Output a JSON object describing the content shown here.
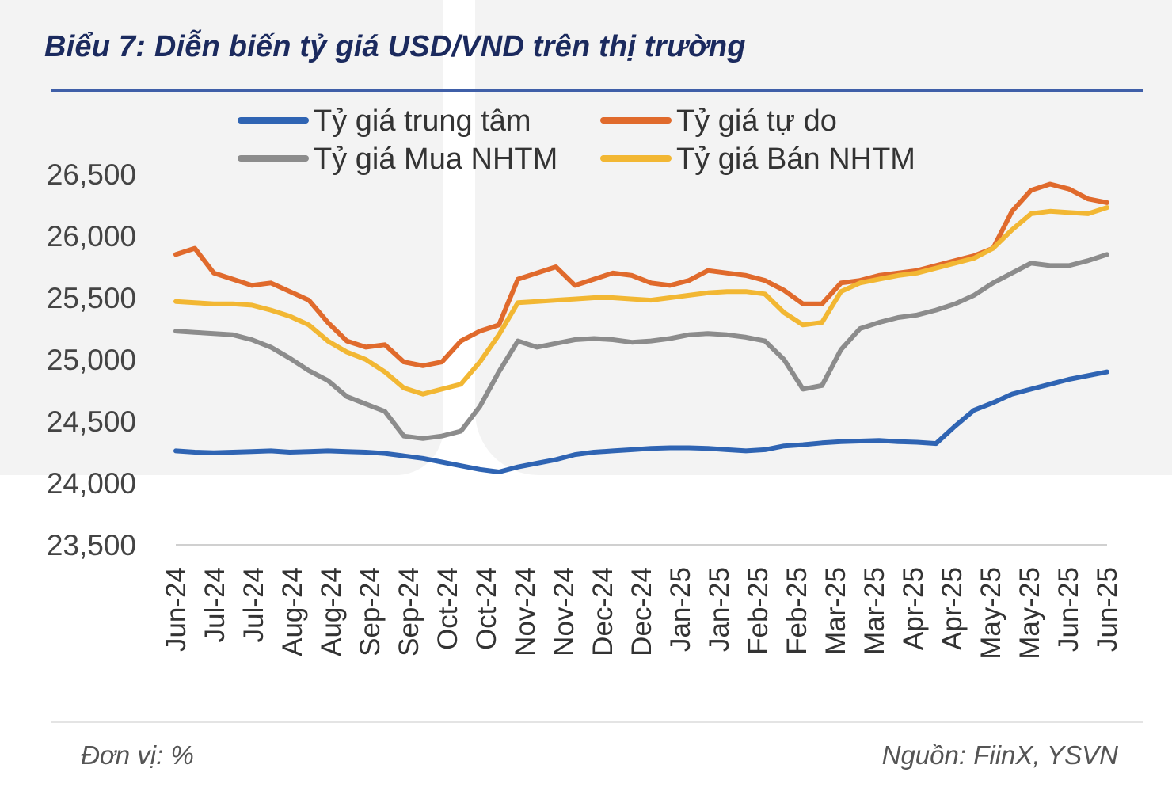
{
  "header": {
    "title": "Biểu 7: Diễn biến tỷ giá USD/VND trên thị trường"
  },
  "footer": {
    "unit": "Đơn vị: %",
    "source": "Nguồn: FiinX, YSVN"
  },
  "colors": {
    "central": "#2f64b3",
    "free": "#e06a2c",
    "buy": "#8c8c8c",
    "sell": "#f2b733",
    "title": "#1b2a5e",
    "rule": "#3f5fa8"
  },
  "chart_data": {
    "type": "line",
    "ylim": [
      23500,
      26500
    ],
    "yticks": [
      26500,
      26000,
      25500,
      25000,
      24500,
      24000,
      23500
    ],
    "ytick_labels": [
      "26,500",
      "26,000",
      "25,500",
      "25,000",
      "24,500",
      "24,000",
      "23,500"
    ],
    "xtick_labels": [
      "Jun-24",
      "Jul-24",
      "Jul-24",
      "Aug-24",
      "Aug-24",
      "Sep-24",
      "Sep-24",
      "Oct-24",
      "Oct-24",
      "Nov-24",
      "Nov-24",
      "Dec-24",
      "Dec-24",
      "Jan-25",
      "Jan-25",
      "Feb-25",
      "Feb-25",
      "Mar-25",
      "Mar-25",
      "Apr-25",
      "Apr-25",
      "May-25",
      "May-25",
      "Jun-25",
      "Jun-25"
    ],
    "legend_position": "top",
    "grid": false,
    "x_points": 50,
    "series": [
      {
        "name": "Tỷ giá trung tâm",
        "color": "#2f64b3",
        "values": [
          24260,
          24250,
          24245,
          24250,
          24255,
          24260,
          24250,
          24255,
          24260,
          24255,
          24250,
          24240,
          24220,
          24200,
          24170,
          24140,
          24110,
          24090,
          24130,
          24160,
          24190,
          24230,
          24250,
          24260,
          24270,
          24280,
          24285,
          24285,
          24280,
          24270,
          24260,
          24270,
          24300,
          24310,
          24325,
          24335,
          24340,
          24345,
          24335,
          24330,
          24320,
          24460,
          24590,
          24650,
          24720,
          24760,
          24800,
          24840,
          24870,
          24900
        ]
      },
      {
        "name": "Tỷ giá tự do",
        "color": "#e06a2c",
        "values": [
          25850,
          25900,
          25700,
          25650,
          25600,
          25620,
          25550,
          25480,
          25300,
          25150,
          25100,
          25120,
          24980,
          24950,
          24980,
          25150,
          25230,
          25280,
          25650,
          25700,
          25750,
          25600,
          25650,
          25700,
          25680,
          25620,
          25600,
          25640,
          25720,
          25700,
          25680,
          25640,
          25560,
          25450,
          25450,
          25620,
          25640,
          25680,
          25700,
          25720,
          25760,
          25800,
          25840,
          25900,
          26200,
          26370,
          26420,
          26380,
          26300,
          26270
        ]
      },
      {
        "name": "Tỷ giá Mua NHTM",
        "color": "#8c8c8c",
        "values": [
          25230,
          25220,
          25210,
          25200,
          25160,
          25100,
          25010,
          24910,
          24830,
          24700,
          24640,
          24580,
          24380,
          24360,
          24380,
          24420,
          24620,
          24900,
          25150,
          25100,
          25130,
          25160,
          25170,
          25160,
          25140,
          25150,
          25170,
          25200,
          25210,
          25200,
          25180,
          25150,
          25000,
          24760,
          24790,
          25080,
          25250,
          25300,
          25340,
          25360,
          25400,
          25450,
          25520,
          25620,
          25700,
          25780,
          25760,
          25760,
          25800,
          25850
        ]
      },
      {
        "name": "Tỷ giá Bán NHTM",
        "color": "#f2b733",
        "values": [
          25470,
          25460,
          25450,
          25450,
          25440,
          25400,
          25350,
          25280,
          25150,
          25060,
          25000,
          24900,
          24770,
          24720,
          24760,
          24800,
          24980,
          25200,
          25460,
          25470,
          25480,
          25490,
          25500,
          25500,
          25490,
          25480,
          25500,
          25520,
          25540,
          25550,
          25550,
          25530,
          25380,
          25280,
          25300,
          25550,
          25620,
          25650,
          25680,
          25700,
          25740,
          25780,
          25820,
          25900,
          26050,
          26180,
          26200,
          26190,
          26180,
          26230
        ]
      }
    ]
  }
}
